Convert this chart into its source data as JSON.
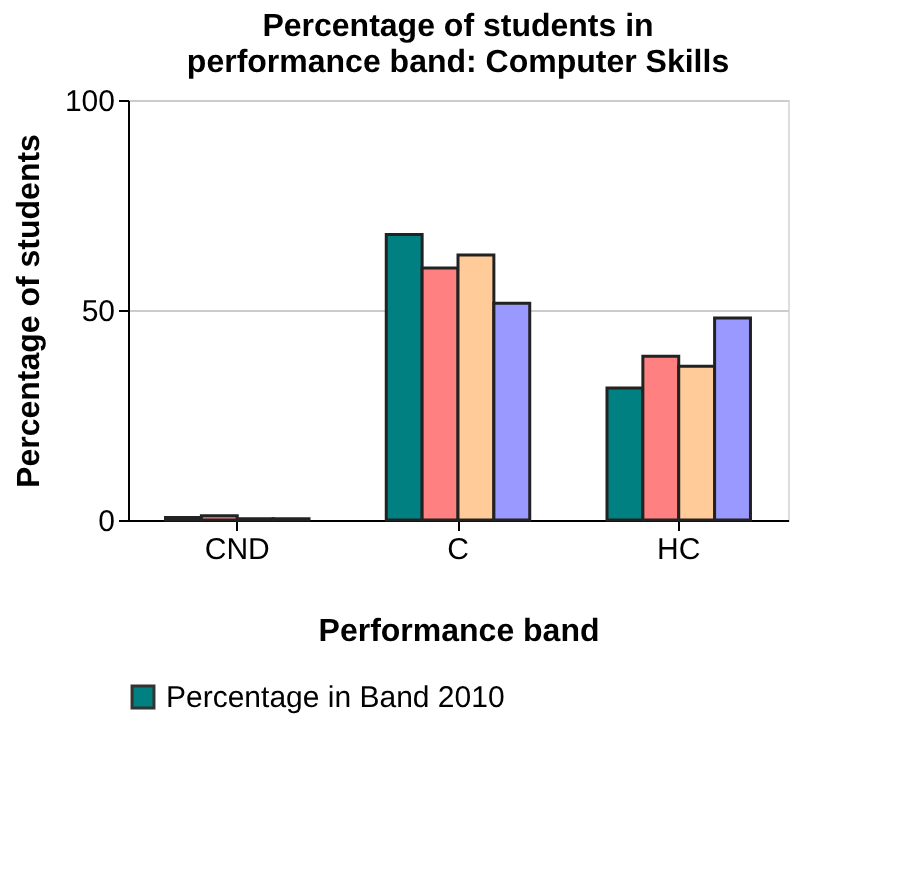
{
  "chart_data": {
    "type": "bar",
    "title": [
      "Percentage of students in",
      "performance band: Computer Skills"
    ],
    "xlabel": "Performance band",
    "ylabel": "Percentage of students",
    "categories": [
      "CND",
      "C",
      "HC"
    ],
    "series": [
      {
        "name": "Percentage in Band 2010",
        "color": "#008080",
        "values": [
          0.6,
          68.0,
          31.4
        ]
      },
      {
        "color": "#ff8080",
        "values": [
          1.0,
          60.0,
          39.0
        ]
      },
      {
        "color": "#ffcc99",
        "values": [
          0.3,
          63.1,
          36.6
        ]
      },
      {
        "color": "#9999ff",
        "values": [
          0.3,
          51.6,
          48.1
        ]
      }
    ],
    "ylim": [
      0,
      100
    ],
    "yticks": [
      0,
      50,
      100
    ],
    "grid": "y",
    "legend": "bottom"
  }
}
